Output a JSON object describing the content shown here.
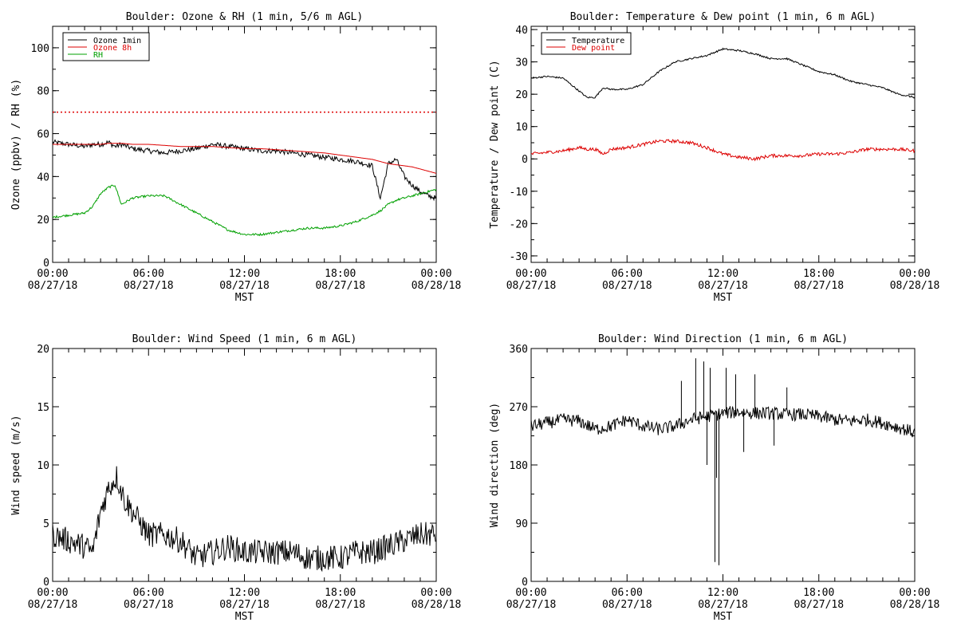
{
  "chart_data": [
    {
      "type": "line",
      "title": "Boulder: Ozone & RH (1 min, 5/6 m AGL)",
      "ylabel": "Ozone (ppbv) / RH (%)",
      "xlabel": "MST",
      "ylim": [
        0,
        110
      ],
      "yticks": [
        0,
        20,
        40,
        60,
        80,
        100
      ],
      "xticks": [
        {
          "top": "00:00",
          "bottom": "08/27/18"
        },
        {
          "top": "06:00",
          "bottom": "08/27/18"
        },
        {
          "top": "12:00",
          "bottom": "08/27/18"
        },
        {
          "top": "18:00",
          "bottom": "08/27/18"
        },
        {
          "top": "00:00",
          "bottom": "08/28/18"
        }
      ],
      "x_hours": [
        0,
        1,
        2,
        2.5,
        3,
        3.5,
        3.9,
        4.3,
        5,
        6,
        7,
        8,
        9,
        10,
        11,
        12,
        13,
        14,
        15,
        16,
        17,
        18,
        19,
        20,
        20.5,
        21,
        21.5,
        22,
        22.5,
        23,
        23.5,
        24
      ],
      "legend": [
        {
          "name": "Ozone 1min",
          "color": "#000000"
        },
        {
          "name": "Ozone 8h",
          "color": "#dd0000"
        },
        {
          "name": "RH",
          "color": "#00a000"
        }
      ],
      "reference_line": {
        "y": 70,
        "color": "#dd0000",
        "style": "dotted"
      },
      "series": [
        {
          "name": "Ozone 1min",
          "color": "#000000",
          "noise": 1.2,
          "values": [
            56,
            55,
            54,
            55,
            55,
            56,
            54,
            55,
            53,
            52,
            51,
            52,
            53,
            55,
            54,
            53,
            52,
            52,
            51,
            50,
            49,
            48,
            47,
            45,
            30,
            46,
            48,
            40,
            36,
            33,
            31,
            30
          ]
        },
        {
          "name": "Ozone 8h",
          "color": "#dd0000",
          "noise": 0,
          "values": [
            55,
            55,
            55,
            55,
            55,
            55.5,
            55.5,
            55.5,
            55,
            55,
            54.5,
            54,
            54,
            54,
            53.5,
            53,
            53,
            52.5,
            52,
            51.5,
            51,
            50,
            49,
            48,
            47,
            46,
            45.5,
            45,
            44.5,
            43.5,
            42.5,
            41.5
          ]
        },
        {
          "name": "RH",
          "color": "#00a000",
          "noise": 0.5,
          "values": [
            21,
            22,
            23,
            26,
            32,
            35,
            36,
            27,
            30,
            31,
            31,
            27,
            23,
            19,
            15,
            13,
            13,
            14,
            15,
            16,
            16,
            17,
            19,
            22,
            24,
            27,
            29,
            30,
            31,
            32,
            33,
            34
          ]
        }
      ]
    },
    {
      "type": "line",
      "title": "Boulder: Temperature & Dew point (1 min, 6 m AGL)",
      "ylabel": "Temperature / Dew point (C)",
      "xlabel": "MST",
      "ylim": [
        -32,
        41
      ],
      "yticks": [
        -30,
        -20,
        -10,
        0,
        10,
        20,
        30,
        40
      ],
      "xticks": [
        {
          "top": "00:00",
          "bottom": "08/27/18"
        },
        {
          "top": "06:00",
          "bottom": "08/27/18"
        },
        {
          "top": "12:00",
          "bottom": "08/27/18"
        },
        {
          "top": "18:00",
          "bottom": "08/27/18"
        },
        {
          "top": "00:00",
          "bottom": "08/28/18"
        }
      ],
      "x_hours": [
        0,
        1,
        2,
        2.5,
        3,
        3.5,
        4,
        4.5,
        5,
        6,
        7,
        8,
        9,
        10,
        11,
        12,
        13,
        14,
        15,
        16,
        17,
        18,
        19,
        20,
        21,
        22,
        23,
        24
      ],
      "legend": [
        {
          "name": "Temperature",
          "color": "#000000"
        },
        {
          "name": "Dew point",
          "color": "#dd0000"
        }
      ],
      "series": [
        {
          "name": "Temperature",
          "color": "#000000",
          "noise": 0.25,
          "values": [
            25,
            25.5,
            25,
            23,
            21,
            19,
            19,
            22,
            21.5,
            21.5,
            23,
            27,
            30,
            31,
            32,
            34,
            33.5,
            32.5,
            31,
            31,
            29,
            27,
            26,
            24,
            23,
            22,
            20,
            19
          ]
        },
        {
          "name": "Dew point",
          "color": "#dd0000",
          "noise": 0.5,
          "values": [
            1.5,
            2,
            2.5,
            3,
            3.5,
            3,
            3,
            1.5,
            3,
            3.5,
            4.5,
            5.5,
            5.5,
            5,
            3.5,
            1.5,
            0.5,
            0,
            1,
            1,
            1,
            1.5,
            1.5,
            2,
            3,
            3,
            3,
            2.5
          ]
        }
      ]
    },
    {
      "type": "line",
      "title": "Boulder: Wind Speed (1 min, 6 m AGL)",
      "ylabel": "Wind speed (m/s)",
      "xlabel": "MST",
      "ylim": [
        0,
        20
      ],
      "yticks": [
        0,
        5,
        10,
        15,
        20
      ],
      "xticks": [
        {
          "top": "00:00",
          "bottom": "08/27/18"
        },
        {
          "top": "06:00",
          "bottom": "08/27/18"
        },
        {
          "top": "12:00",
          "bottom": "08/27/18"
        },
        {
          "top": "18:00",
          "bottom": "08/27/18"
        },
        {
          "top": "00:00",
          "bottom": "08/28/18"
        }
      ],
      "x_hours": [
        0,
        1,
        2,
        2.5,
        3,
        3.5,
        4,
        4.5,
        5,
        5.5,
        6,
        7,
        8,
        9,
        10,
        11,
        12,
        13,
        14,
        15,
        16,
        17,
        18,
        19,
        20,
        21,
        22,
        23,
        24
      ],
      "series": [
        {
          "name": "",
          "color": "#000000",
          "noise": 1.1,
          "values": [
            4,
            3.5,
            3,
            2.5,
            6,
            8,
            9,
            7,
            6,
            5,
            4,
            4,
            3.5,
            2,
            2.5,
            3,
            2.5,
            2.5,
            2.5,
            2.5,
            2,
            2,
            2,
            2.5,
            2.5,
            3,
            3.5,
            4,
            4
          ]
        }
      ]
    },
    {
      "type": "line",
      "title": "Boulder: Wind Direction (1 min, 6 m AGL)",
      "ylabel": "Wind direction (deg)",
      "xlabel": "MST",
      "ylim": [
        0,
        360
      ],
      "yticks": [
        0,
        90,
        180,
        270,
        360
      ],
      "xticks": [
        {
          "top": "00:00",
          "bottom": "08/27/18"
        },
        {
          "top": "06:00",
          "bottom": "08/27/18"
        },
        {
          "top": "12:00",
          "bottom": "08/27/18"
        },
        {
          "top": "18:00",
          "bottom": "08/27/18"
        },
        {
          "top": "00:00",
          "bottom": "08/28/18"
        }
      ],
      "x_hours": [
        0,
        1,
        2,
        3,
        4,
        5,
        6,
        7,
        8,
        9,
        10,
        11,
        12,
        13,
        14,
        15,
        16,
        17,
        18,
        19,
        20,
        21,
        22,
        23,
        24
      ],
      "series": [
        {
          "name": "",
          "color": "#000000",
          "noise": 10,
          "values": [
            240,
            245,
            250,
            248,
            235,
            240,
            250,
            240,
            235,
            240,
            250,
            255,
            260,
            262,
            260,
            260,
            258,
            258,
            255,
            250,
            248,
            250,
            245,
            238,
            230
          ],
          "spikes": [
            {
              "x": 9.4,
              "y": 310
            },
            {
              "x": 10.3,
              "y": 345
            },
            {
              "x": 10.8,
              "y": 340
            },
            {
              "x": 11.2,
              "y": 330
            },
            {
              "x": 11.5,
              "y": 30
            },
            {
              "x": 11.6,
              "y": 160
            },
            {
              "x": 11.75,
              "y": 25
            },
            {
              "x": 12.2,
              "y": 330
            },
            {
              "x": 11.0,
              "y": 180
            },
            {
              "x": 12.8,
              "y": 320
            },
            {
              "x": 14.0,
              "y": 320
            },
            {
              "x": 16.0,
              "y": 300
            },
            {
              "x": 15.2,
              "y": 210
            },
            {
              "x": 13.3,
              "y": 200
            }
          ]
        }
      ]
    }
  ]
}
